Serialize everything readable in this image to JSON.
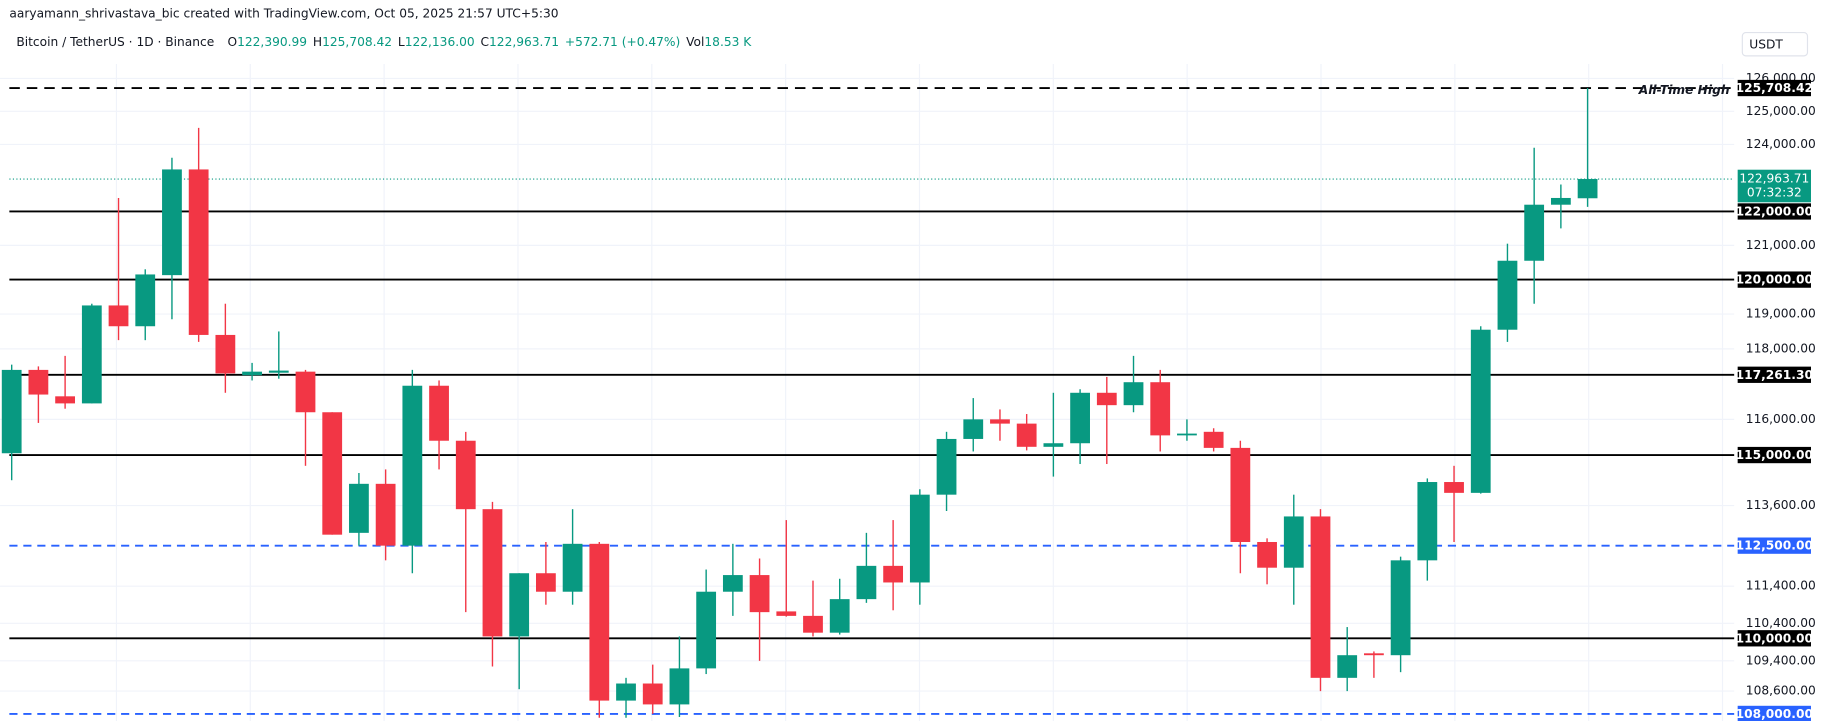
{
  "header": {
    "attribution": "aaryamann_shrivastava_bic created with TradingView.com, Oct 05, 2025 21:57 UTC+5:30",
    "symbol": "Bitcoin / TetherUS · 1D · Binance",
    "legend": [
      {
        "key": "O",
        "value": "122,390.99"
      },
      {
        "key": "H",
        "value": "125,708.42"
      },
      {
        "key": "L",
        "value": "122,136.00"
      },
      {
        "key": "C",
        "value": "122,963.71"
      }
    ],
    "change": "+572.71 (+0.47%)",
    "volume": {
      "key": "Vol",
      "value": "18.53 K"
    },
    "currency": "USDT"
  },
  "chart_data": {
    "type": "candlestick",
    "log_scale": true,
    "grid": true,
    "up_color": "#089981",
    "down_color": "#f23645",
    "open": [
      115050,
      117400,
      116650,
      116450,
      119250,
      118650,
      120130,
      123250,
      118400,
      117250,
      117320,
      117350,
      116200,
      112850,
      114200,
      112500,
      116950,
      115400,
      113500,
      110050,
      111750,
      111250,
      112550,
      108350,
      108800,
      108250,
      109200,
      111250,
      111700,
      110720,
      110600,
      110150,
      111050,
      111950,
      111500,
      113900,
      115450,
      116000,
      115880,
      115230,
      115330,
      116750,
      116400,
      117050,
      115550,
      115650,
      115200,
      112600,
      111900,
      113300,
      108950,
      109600,
      109550,
      112100,
      114250,
      113950,
      118550,
      120550,
      122200,
      122390.99
    ],
    "high": [
      117550,
      117500,
      117800,
      119300,
      122400,
      120300,
      123600,
      124500,
      119300,
      117600,
      118500,
      117400,
      116200,
      114500,
      114600,
      117400,
      117100,
      115650,
      113700,
      111750,
      112600,
      113500,
      112600,
      108950,
      109300,
      110050,
      111850,
      112550,
      112150,
      113200,
      111550,
      111600,
      112850,
      113200,
      114050,
      115650,
      116600,
      116280,
      116150,
      116750,
      116850,
      117200,
      117800,
      117400,
      116000,
      115750,
      115400,
      112700,
      113900,
      113500,
      110300,
      109650,
      112200,
      114350,
      114700,
      118650,
      121050,
      123900,
      122800,
      125708.42
    ],
    "low": [
      114300,
      115900,
      116300,
      116450,
      118250,
      118250,
      118850,
      118200,
      116750,
      117100,
      117150,
      114700,
      112800,
      112500,
      112100,
      111750,
      114600,
      110700,
      109250,
      108650,
      110900,
      110900,
      107900,
      107900,
      108000,
      107920,
      109050,
      110600,
      109400,
      110580,
      110050,
      110100,
      110950,
      110750,
      110900,
      113450,
      115100,
      115400,
      115130,
      114400,
      114750,
      114750,
      116200,
      115100,
      115400,
      115100,
      111750,
      111450,
      110900,
      108600,
      108600,
      108950,
      109100,
      111550,
      112600,
      113930,
      118200,
      119300,
      121500,
      122136
    ],
    "close": [
      117400,
      116700,
      116450,
      119250,
      118650,
      120150,
      123250,
      118400,
      117300,
      117350,
      117380,
      116200,
      112800,
      114200,
      112500,
      116950,
      115400,
      113500,
      110050,
      111750,
      111250,
      112550,
      108350,
      108800,
      108250,
      109200,
      111250,
      111700,
      110700,
      110600,
      110150,
      111050,
      111950,
      111500,
      113900,
      115450,
      116000,
      115880,
      115230,
      115330,
      116750,
      116400,
      117050,
      115550,
      115600,
      115200,
      112600,
      111900,
      113300,
      108950,
      109550,
      109550,
      112100,
      114250,
      113950,
      118550,
      120550,
      122200,
      122400,
      122963.71
    ],
    "ylim": [
      107800,
      126800
    ],
    "yticks": [
      {
        "value": 126000,
        "label": "126,000.00"
      },
      {
        "value": 125000,
        "label": "125,000.00"
      },
      {
        "value": 124000,
        "label": "124,000.00"
      },
      {
        "value": 121000,
        "label": "121,000.00"
      },
      {
        "value": 119000,
        "label": "119,000.00"
      },
      {
        "value": 118000,
        "label": "118,000.00"
      },
      {
        "value": 116000,
        "label": "116,000.00"
      },
      {
        "value": 113600,
        "label": "113,600.00"
      },
      {
        "value": 111400,
        "label": "111,400.00"
      },
      {
        "value": 110400,
        "label": "110,400.00"
      },
      {
        "value": 109400,
        "label": "109,400.00"
      },
      {
        "value": 108600,
        "label": "108,600.00"
      }
    ],
    "levels": [
      {
        "value": 125708.42,
        "label": "125,708.42",
        "color": "#000000",
        "dashed": true
      },
      {
        "value": 122000,
        "label": "122,000.00",
        "color": "#000000",
        "dashed": false
      },
      {
        "value": 120000,
        "label": "120,000.00",
        "color": "#000000",
        "dashed": false
      },
      {
        "value": 117261.3,
        "label": "117,261.30",
        "color": "#000000",
        "dashed": false
      },
      {
        "value": 115000,
        "label": "115,000.00",
        "color": "#000000",
        "dashed": false
      },
      {
        "value": 112500,
        "label": "112,500.00",
        "color": "#2962ff",
        "dashed": true
      },
      {
        "value": 110000,
        "label": "110,000.00",
        "color": "#000000",
        "dashed": false
      },
      {
        "value": 108000,
        "label": "108,000.00",
        "color": "#2962ff",
        "dashed": true
      }
    ],
    "annotations": [
      {
        "text": "All-Time High",
        "value": 125708.42
      }
    ],
    "last_price": {
      "value": 122963.71,
      "label": "122,963.71",
      "countdown": "07:32:32"
    }
  }
}
